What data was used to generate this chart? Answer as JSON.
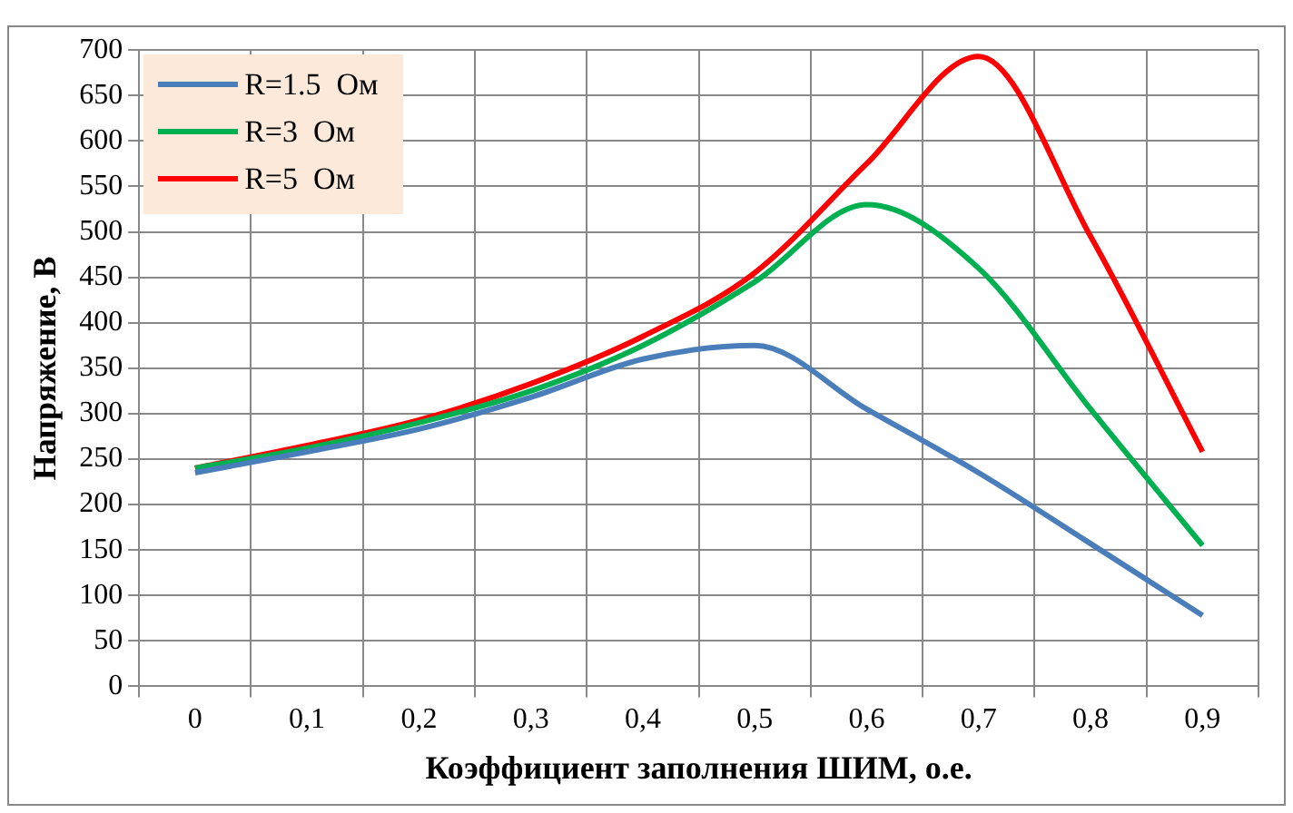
{
  "chart_data": {
    "type": "line",
    "xlabel": "Коэффициент заполнения ШИМ, о.е.",
    "ylabel": "Напряжение, В",
    "categories": [
      "0",
      "0,1",
      "0,2",
      "0,3",
      "0,4",
      "0,5",
      "0,6",
      "0,7",
      "0,8",
      "0,9"
    ],
    "series": [
      {
        "name": "R=1.5  Ом",
        "color": "#4a7ebb",
        "values": [
          235,
          258,
          283,
          318,
          360,
          375,
          305,
          235,
          157,
          78
        ]
      },
      {
        "name": "R=3  Ом",
        "color": "#00b050",
        "values": [
          240,
          262,
          290,
          325,
          375,
          445,
          530,
          460,
          305,
          155
        ]
      },
      {
        "name": "R=5  Ом",
        "color": "#ff0000",
        "values": [
          240,
          265,
          293,
          333,
          385,
          455,
          575,
          693,
          495,
          258
        ]
      }
    ],
    "ylim": [
      0,
      700
    ],
    "yticks": [
      0,
      50,
      100,
      150,
      200,
      250,
      300,
      350,
      400,
      450,
      500,
      550,
      600,
      650,
      700
    ],
    "grid": true,
    "legend": "top left",
    "marker": "none",
    "line_style": "solid"
  }
}
